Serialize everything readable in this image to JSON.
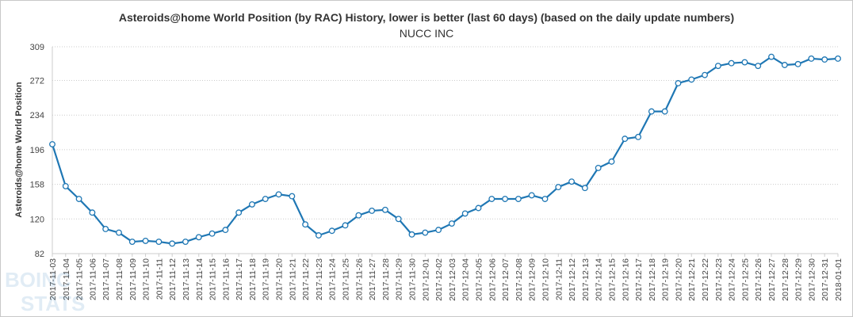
{
  "colors": {
    "line": "#1f77b4",
    "grid": "#cccccc",
    "axis": "#cccccc",
    "text": "#333333"
  },
  "chart_data": {
    "type": "line",
    "title": "Asteroids@home World Position (by RAC) History, lower is better (last 60 days) (based on the daily update numbers)",
    "subtitle": "NUCC INC",
    "xlabel": "",
    "ylabel": "Asteroids@home World Position",
    "ylim": [
      82,
      309
    ],
    "yticks": [
      82,
      120,
      158,
      196,
      234,
      272,
      309
    ],
    "grid": "horizontal-dotted",
    "legend": "none",
    "x": [
      "2017-11-03",
      "2017-11-04",
      "2017-11-05",
      "2017-11-06",
      "2017-11-07",
      "2017-11-08",
      "2017-11-09",
      "2017-11-10",
      "2017-11-11",
      "2017-11-12",
      "2017-11-13",
      "2017-11-14",
      "2017-11-15",
      "2017-11-16",
      "2017-11-17",
      "2017-11-18",
      "2017-11-19",
      "2017-11-20",
      "2017-11-21",
      "2017-11-22",
      "2017-11-23",
      "2017-11-24",
      "2017-11-25",
      "2017-11-26",
      "2017-11-27",
      "2017-11-28",
      "2017-11-29",
      "2017-11-30",
      "2017-12-01",
      "2017-12-02",
      "2017-12-03",
      "2017-12-04",
      "2017-12-05",
      "2017-12-06",
      "2017-12-07",
      "2017-12-08",
      "2017-12-09",
      "2017-12-10",
      "2017-12-11",
      "2017-12-12",
      "2017-12-13",
      "2017-12-14",
      "2017-12-15",
      "2017-12-16",
      "2017-12-17",
      "2017-12-18",
      "2017-12-19",
      "2017-12-20",
      "2017-12-21",
      "2017-12-22",
      "2017-12-23",
      "2017-12-24",
      "2017-12-25",
      "2017-12-26",
      "2017-12-27",
      "2017-12-28",
      "2017-12-29",
      "2017-12-30",
      "2017-12-31",
      "2018-01-01"
    ],
    "series": [
      {
        "values": [
          202,
          156,
          142,
          127,
          109,
          105,
          95,
          96,
          95,
          93,
          95,
          100,
          104,
          108,
          127,
          136,
          142,
          147,
          145,
          114,
          102,
          107,
          113,
          124,
          129,
          130,
          120,
          103,
          105,
          108,
          115,
          126,
          132,
          142,
          142,
          142,
          146,
          142,
          155,
          161,
          154,
          176,
          183,
          208,
          210,
          238,
          238,
          269,
          273,
          278,
          288,
          291,
          292,
          288,
          298,
          289,
          290,
          296,
          295,
          296
        ]
      }
    ]
  }
}
